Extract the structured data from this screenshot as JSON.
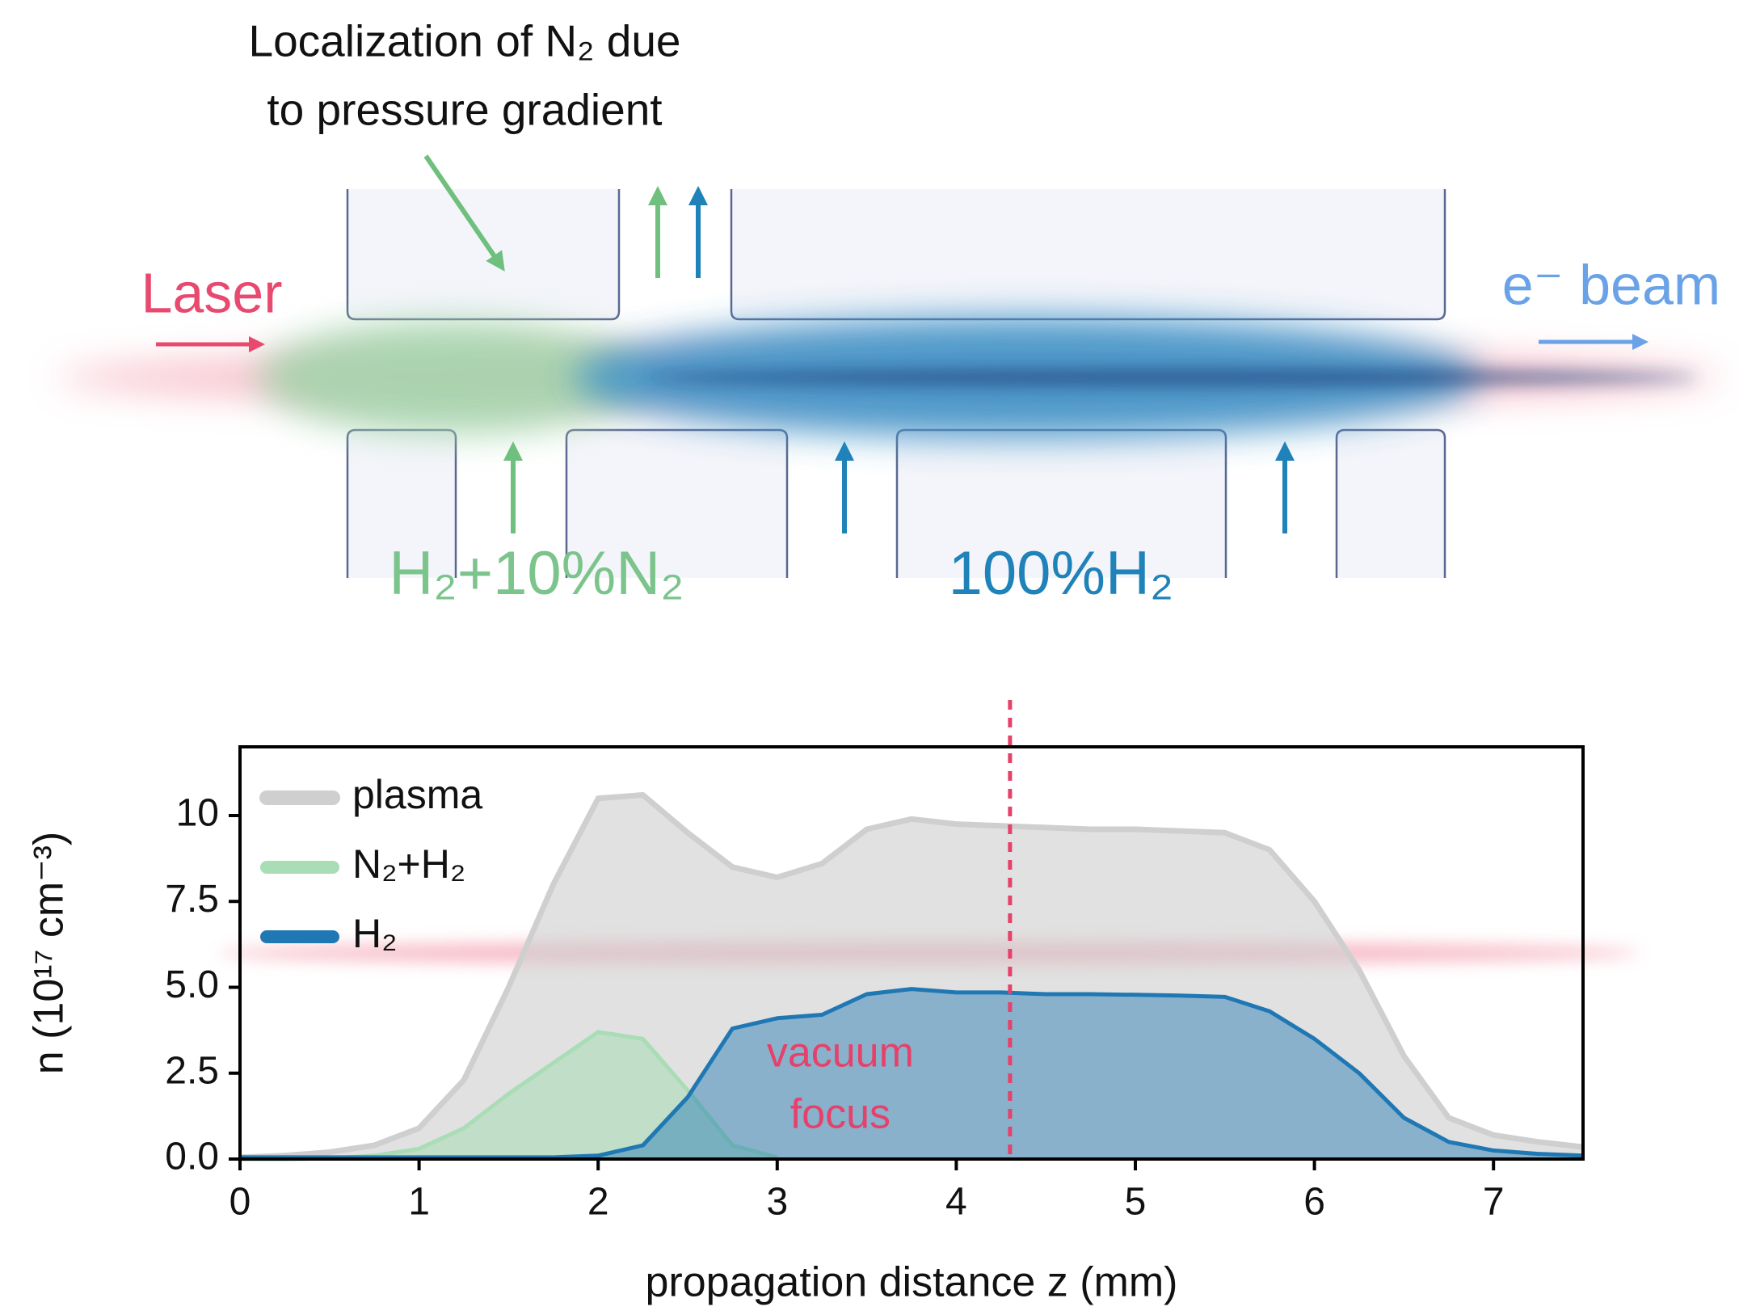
{
  "diagram": {
    "annotation": [
      "Localization of N₂ due",
      "to pressure gradient"
    ],
    "laser": "Laser",
    "ebeam": "e⁻ beam",
    "mix_gas": "H₂+10%N₂",
    "pure_gas": "100%H₂"
  },
  "chart_data": {
    "type": "area",
    "x": [
      0,
      0.25,
      0.5,
      0.75,
      1,
      1.25,
      1.5,
      1.75,
      2,
      2.25,
      2.5,
      2.75,
      3,
      3.25,
      3.5,
      3.75,
      4,
      4.25,
      4.5,
      4.75,
      5,
      5.25,
      5.5,
      5.75,
      6,
      6.25,
      6.5,
      6.75,
      7,
      7.25,
      7.5
    ],
    "series": [
      {
        "name": "plasma",
        "color": "#cfcfcf",
        "values": [
          0.05,
          0.1,
          0.2,
          0.4,
          0.9,
          2.3,
          5.0,
          8.0,
          10.5,
          10.6,
          9.5,
          8.5,
          8.2,
          8.6,
          9.6,
          9.9,
          9.75,
          9.7,
          9.65,
          9.6,
          9.6,
          9.55,
          9.5,
          9.0,
          7.5,
          5.5,
          3.0,
          1.2,
          0.7,
          0.5,
          0.35
        ]
      },
      {
        "name": "N₂+H₂",
        "color": "#a8ddb5",
        "values": [
          0,
          0,
          0.02,
          0.1,
          0.3,
          0.9,
          1.9,
          2.8,
          3.7,
          3.5,
          2.0,
          0.4,
          0.05,
          null,
          null,
          null,
          null,
          null,
          null,
          null,
          null,
          null,
          null,
          null,
          null,
          null,
          null,
          null,
          null,
          null,
          null
        ]
      },
      {
        "name": "H₂",
        "color": "#1f78b4",
        "values": [
          0.05,
          0.05,
          0.05,
          0.05,
          0.05,
          0.05,
          0.05,
          0.05,
          0.1,
          0.4,
          1.8,
          3.8,
          4.1,
          4.2,
          4.8,
          4.95,
          4.85,
          4.85,
          4.8,
          4.8,
          4.78,
          4.76,
          4.72,
          4.3,
          3.5,
          2.5,
          1.2,
          0.5,
          0.25,
          0.15,
          0.1
        ]
      }
    ],
    "xlim": [
      0,
      7.5
    ],
    "xticks": [
      0,
      1,
      2,
      3,
      4,
      5,
      6,
      7
    ],
    "ylim": [
      0,
      12
    ],
    "yticks": [
      {
        "value": 0,
        "label": "0.0"
      },
      2.5,
      {
        "value": 5,
        "label": "5.0"
      },
      7.5,
      10
    ],
    "xlabel": "propagation distance z (mm)",
    "ylabel": "n (10¹⁷ cm⁻³)",
    "legend": "upper left",
    "vline": {
      "x": 4.3,
      "color": "#e5416a",
      "label": [
        "vacuum",
        "focus"
      ]
    }
  }
}
